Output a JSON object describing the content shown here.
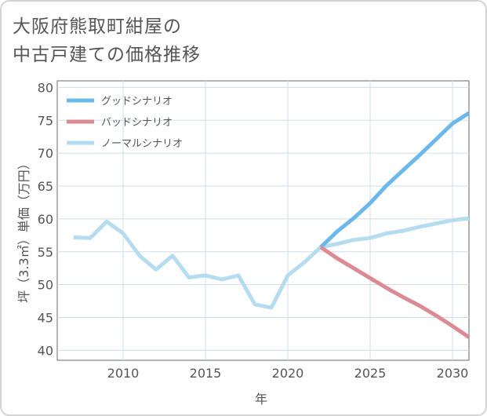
{
  "title_lines": [
    "大阪府熊取町紺屋の",
    "中古戸建ての価格推移"
  ],
  "chart_data": {
    "type": "line",
    "xlabel": "年",
    "ylabel": "坪（3.3㎡）単価（万円）",
    "xlim": [
      2006,
      2031
    ],
    "ylim": [
      38.5,
      81
    ],
    "xticks": [
      2010,
      2015,
      2020,
      2025,
      2030
    ],
    "yticks": [
      40,
      45,
      50,
      55,
      60,
      65,
      70,
      75,
      80
    ],
    "grid": true,
    "legend_position": "top-left",
    "series": [
      {
        "name": "グッドシナリオ",
        "color": "#6cb8ea",
        "x": [
          2022,
          2023,
          2024,
          2025,
          2026,
          2027,
          2028,
          2029,
          2030,
          2031
        ],
        "y": [
          55.7,
          58.1,
          60.1,
          62.4,
          65.1,
          67.4,
          69.7,
          72.1,
          74.5,
          76.1
        ]
      },
      {
        "name": "バッドシナリオ",
        "color": "#dc8a94",
        "x": [
          2022,
          2023,
          2024,
          2025,
          2026,
          2027,
          2028,
          2029,
          2030,
          2031
        ],
        "y": [
          55.7,
          54.0,
          52.5,
          51.0,
          49.5,
          48.1,
          46.8,
          45.3,
          43.7,
          42.0
        ]
      },
      {
        "name": "ノーマルシナリオ",
        "color": "#b6dcef",
        "x": [
          2007,
          2008,
          2009,
          2010,
          2011,
          2012,
          2013,
          2014,
          2015,
          2016,
          2017,
          2018,
          2019,
          2020,
          2021,
          2022,
          2023,
          2024,
          2025,
          2026,
          2027,
          2028,
          2029,
          2030,
          2031
        ],
        "y": [
          57.2,
          57.1,
          59.6,
          57.8,
          54.4,
          52.3,
          54.4,
          51.1,
          51.4,
          50.8,
          51.4,
          47.0,
          46.5,
          51.4,
          53.4,
          55.7,
          56.2,
          56.8,
          57.1,
          57.8,
          58.2,
          58.8,
          59.3,
          59.8,
          60.1
        ]
      }
    ]
  }
}
